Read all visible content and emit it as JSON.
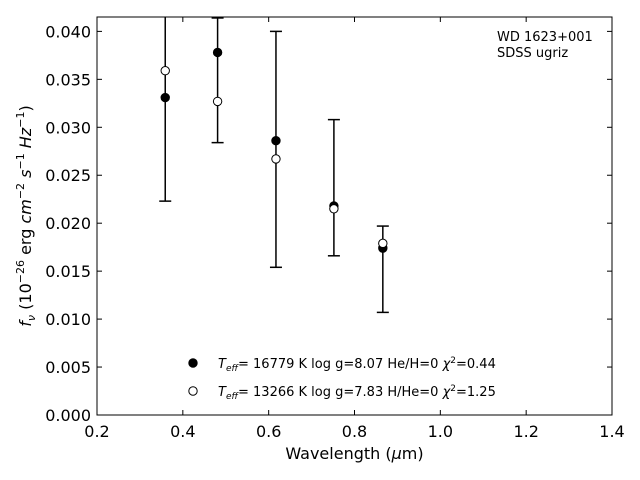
{
  "chart_data": {
    "type": "scatter",
    "annotation": [
      "WD 1623+001",
      "SDSS ugriz"
    ],
    "xlabel": "Wavelength (μm)",
    "ylabel": "f_ν (10^-26 erg cm^-2 s^-1 Hz^-1)",
    "xlim": [
      0.2,
      1.4
    ],
    "ylim": [
      0.0,
      0.0415
    ],
    "xticks": [
      "0.2",
      "0.4",
      "0.6",
      "0.8",
      "1.0",
      "1.2",
      "1.4"
    ],
    "yticks": [
      "0.000",
      "0.005",
      "0.010",
      "0.015",
      "0.020",
      "0.025",
      "0.030",
      "0.035",
      "0.040"
    ],
    "grid": false,
    "legend_position": "bottom-center",
    "observed": {
      "x": [
        0.359,
        0.481,
        0.617,
        0.752,
        0.866
      ],
      "y": [
        0.0361,
        0.0349,
        0.0277,
        0.0237,
        0.0152
      ],
      "err": [
        0.0138,
        0.0065,
        0.0123,
        0.0071,
        0.0045
      ]
    },
    "series": [
      {
        "name": "T_eff= 16779 K  log g=8.07  He/H=0  χ²=0.44",
        "marker": "filled-circle",
        "x": [
          0.359,
          0.481,
          0.617,
          0.752,
          0.866
        ],
        "y": [
          0.0331,
          0.0378,
          0.0286,
          0.0218,
          0.0174
        ]
      },
      {
        "name": "T_eff= 13266 K  log g=7.83  H/He=0  χ²=1.25",
        "marker": "open-circle",
        "x": [
          0.359,
          0.481,
          0.617,
          0.752,
          0.866
        ],
        "y": [
          0.0359,
          0.0327,
          0.0267,
          0.0215,
          0.0179
        ]
      }
    ]
  }
}
